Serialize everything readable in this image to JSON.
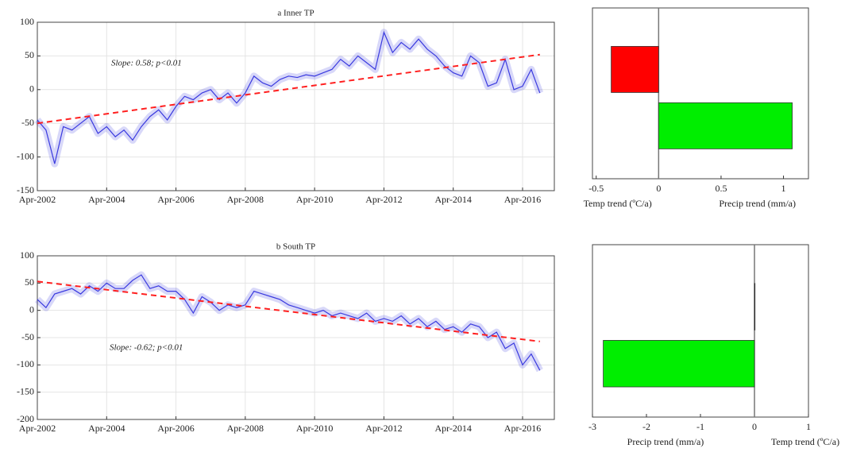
{
  "chart_data": [
    {
      "type": "line",
      "title": "a Inner TP",
      "annotation": "Slope: 0.58; p<0.01",
      "x": [
        "2002-04",
        "2002-07",
        "2002-10",
        "2003-01",
        "2003-04",
        "2003-07",
        "2003-10",
        "2004-01",
        "2004-04",
        "2004-07",
        "2004-10",
        "2005-01",
        "2005-04",
        "2005-07",
        "2005-10",
        "2006-01",
        "2006-04",
        "2006-07",
        "2006-10",
        "2007-01",
        "2007-04",
        "2007-07",
        "2007-10",
        "2008-01",
        "2008-04",
        "2008-07",
        "2008-10",
        "2009-01",
        "2009-04",
        "2009-07",
        "2009-10",
        "2010-01",
        "2010-04",
        "2010-07",
        "2010-10",
        "2011-01",
        "2011-04",
        "2011-07",
        "2011-10",
        "2012-01",
        "2012-04",
        "2012-07",
        "2012-10",
        "2013-01",
        "2013-04",
        "2013-07",
        "2013-10",
        "2014-01",
        "2014-04",
        "2014-07",
        "2014-10",
        "2015-01",
        "2015-04",
        "2015-07",
        "2015-10",
        "2016-01",
        "2016-04",
        "2016-07",
        "2016-10"
      ],
      "series": [
        {
          "color": "#3a3adf",
          "values": [
            -45,
            -60,
            -110,
            -55,
            -60,
            -50,
            -40,
            -65,
            -55,
            -70,
            -60,
            -75,
            -55,
            -40,
            -30,
            -45,
            -25,
            -10,
            -15,
            -5,
            0,
            -15,
            -5,
            -20,
            -5,
            20,
            10,
            5,
            15,
            20,
            18,
            22,
            20,
            25,
            30,
            45,
            35,
            50,
            40,
            30,
            85,
            55,
            70,
            60,
            75,
            60,
            50,
            35,
            25,
            20,
            50,
            40,
            5,
            10,
            45,
            0,
            5,
            30,
            -5
          ]
        }
      ],
      "trend": {
        "color": "#ff2020",
        "x": [
          "2002-04",
          "2016-10"
        ],
        "values": [
          -50,
          52
        ]
      },
      "xlim": [
        "2002-04",
        "2017-03"
      ],
      "xticks": [
        {
          "value": "2002-04",
          "label": "Apr-2002"
        },
        {
          "value": "2004-04",
          "label": "Apr-2004"
        },
        {
          "value": "2006-04",
          "label": "Apr-2006"
        },
        {
          "value": "2008-04",
          "label": "Apr-2008"
        },
        {
          "value": "2010-04",
          "label": "Apr-2010"
        },
        {
          "value": "2012-04",
          "label": "Apr-2012"
        },
        {
          "value": "2014-04",
          "label": "Apr-2014"
        },
        {
          "value": "2016-04",
          "label": "Apr-2016"
        }
      ],
      "ylim": [
        -150,
        100
      ],
      "yticks": [
        -150,
        -100,
        -50,
        0,
        50,
        100
      ],
      "grid": true
    },
    {
      "type": "hbar",
      "categories": [
        "Temp trend (ºC/a)",
        "Precip trend (mm/a)"
      ],
      "values": [
        -0.38,
        1.07
      ],
      "colors": [
        "#ff0000",
        "#00ee00"
      ],
      "xlim": [
        -0.53,
        1.2
      ],
      "xticks": [
        -0.5,
        0,
        0.5,
        1
      ]
    },
    {
      "type": "line",
      "title": "b South TP",
      "annotation": "Slope: -0.62; p<0.01",
      "x": [
        "2002-04",
        "2002-07",
        "2002-10",
        "2003-01",
        "2003-04",
        "2003-07",
        "2003-10",
        "2004-01",
        "2004-04",
        "2004-07",
        "2004-10",
        "2005-01",
        "2005-04",
        "2005-07",
        "2005-10",
        "2006-01",
        "2006-04",
        "2006-07",
        "2006-10",
        "2007-01",
        "2007-04",
        "2007-07",
        "2007-10",
        "2008-01",
        "2008-04",
        "2008-07",
        "2008-10",
        "2009-01",
        "2009-04",
        "2009-07",
        "2009-10",
        "2010-01",
        "2010-04",
        "2010-07",
        "2010-10",
        "2011-01",
        "2011-04",
        "2011-07",
        "2011-10",
        "2012-01",
        "2012-04",
        "2012-07",
        "2012-10",
        "2013-01",
        "2013-04",
        "2013-07",
        "2013-10",
        "2014-01",
        "2014-04",
        "2014-07",
        "2014-10",
        "2015-01",
        "2015-04",
        "2015-07",
        "2015-10",
        "2016-01",
        "2016-04",
        "2016-07",
        "2016-10"
      ],
      "series": [
        {
          "color": "#3a3adf",
          "values": [
            20,
            5,
            30,
            35,
            40,
            30,
            45,
            35,
            50,
            40,
            40,
            55,
            65,
            40,
            45,
            35,
            35,
            20,
            -5,
            25,
            15,
            0,
            10,
            5,
            10,
            35,
            30,
            25,
            20,
            10,
            5,
            0,
            -5,
            0,
            -10,
            -5,
            -10,
            -15,
            -5,
            -20,
            -15,
            -20,
            -10,
            -25,
            -15,
            -30,
            -20,
            -35,
            -30,
            -40,
            -25,
            -30,
            -50,
            -40,
            -70,
            -60,
            -100,
            -80,
            -110
          ]
        }
      ],
      "trend": {
        "color": "#ff2020",
        "x": [
          "2002-04",
          "2016-10"
        ],
        "values": [
          53,
          -57
        ]
      },
      "xlim": [
        "2002-04",
        "2017-03"
      ],
      "xticks": [
        {
          "value": "2002-04",
          "label": "Apr-2002"
        },
        {
          "value": "2004-04",
          "label": "Apr-2004"
        },
        {
          "value": "2006-04",
          "label": "Apr-2006"
        },
        {
          "value": "2008-04",
          "label": "Apr-2008"
        },
        {
          "value": "2010-04",
          "label": "Apr-2010"
        },
        {
          "value": "2012-04",
          "label": "Apr-2012"
        },
        {
          "value": "2014-04",
          "label": "Apr-2014"
        },
        {
          "value": "2016-04",
          "label": "Apr-2016"
        }
      ],
      "ylim": [
        -200,
        100
      ],
      "yticks": [
        -200,
        -150,
        -100,
        -50,
        0,
        50,
        100
      ],
      "grid": true
    },
    {
      "type": "hbar",
      "categories": [
        "Temp trend (ºC/a)",
        "Precip trend (mm/a)"
      ],
      "values": [
        0.01,
        -2.8
      ],
      "colors": [
        "#ff0000",
        "#00ee00"
      ],
      "xlim": [
        -3,
        1
      ],
      "xticks": [
        -3,
        -2,
        -1,
        0,
        1
      ]
    }
  ]
}
